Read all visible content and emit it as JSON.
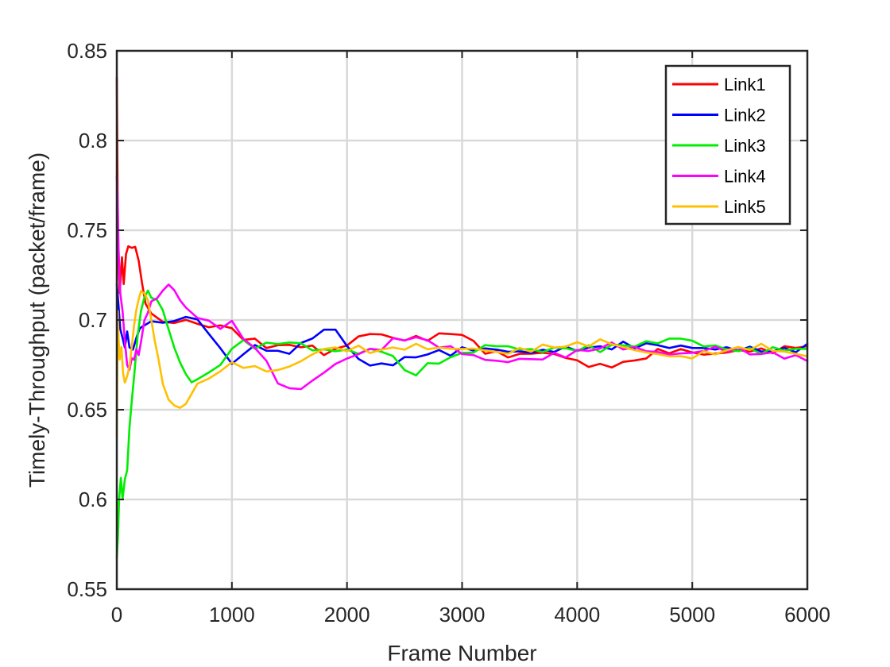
{
  "chart_data": {
    "type": "line",
    "title": "",
    "xlabel": "Frame Number",
    "ylabel": "Timely-Throughput (packet/frame)",
    "xlim": [
      0,
      6000
    ],
    "ylim": [
      0.55,
      0.85
    ],
    "xticks": [
      0,
      1000,
      2000,
      3000,
      4000,
      5000,
      6000
    ],
    "xtick_labels": [
      "0",
      "1000",
      "2000",
      "3000",
      "4000",
      "5000",
      "6000"
    ],
    "yticks": [
      0.55,
      0.6,
      0.65,
      0.7,
      0.75,
      0.8,
      0.85
    ],
    "ytick_labels": [
      "0.55",
      "0.6",
      "0.65",
      "0.7",
      "0.75",
      "0.8",
      "0.85"
    ],
    "grid": true,
    "legend_position": "top-right",
    "series": [
      {
        "name": "Link1",
        "color": "#ff0000",
        "x": [
          0,
          10,
          25,
          45,
          60,
          80,
          100,
          130,
          160,
          190,
          220,
          250,
          300,
          400,
          500,
          600,
          700,
          800,
          900,
          1000,
          1100,
          1200,
          1300,
          1400,
          1500,
          1600,
          1700,
          1800,
          1900,
          2000,
          2100,
          2200,
          2300,
          2400,
          2500,
          2600,
          2700,
          2800,
          2900,
          3000,
          3100,
          3200,
          3300,
          3400,
          3500,
          3600,
          3700,
          3800,
          3900,
          4000,
          4100,
          4200,
          4300,
          4400,
          4500,
          4600,
          4700,
          4800,
          4900,
          5000,
          5100,
          5200,
          5300,
          5400,
          5500,
          5600,
          5700,
          5800,
          5900,
          6000
        ],
        "y": [
          0.835,
          0.74,
          0.715,
          0.735,
          0.72,
          0.735,
          0.74,
          0.741,
          0.74,
          0.735,
          0.72,
          0.71,
          0.702,
          0.7,
          0.698,
          0.7,
          0.698,
          0.696,
          0.697,
          0.695,
          0.69,
          0.688,
          0.686,
          0.685,
          0.686,
          0.686,
          0.684,
          0.682,
          0.683,
          0.686,
          0.691,
          0.692,
          0.692,
          0.69,
          0.689,
          0.69,
          0.69,
          0.691,
          0.693,
          0.692,
          0.687,
          0.683,
          0.681,
          0.68,
          0.681,
          0.681,
          0.682,
          0.681,
          0.679,
          0.677,
          0.675,
          0.674,
          0.675,
          0.676,
          0.677,
          0.68,
          0.682,
          0.683,
          0.683,
          0.682,
          0.681,
          0.681,
          0.682,
          0.683,
          0.683,
          0.683,
          0.683,
          0.684,
          0.685,
          0.686
        ]
      },
      {
        "name": "Link2",
        "color": "#0000ff",
        "x": [
          0,
          15,
          30,
          50,
          70,
          90,
          110,
          140,
          170,
          200,
          250,
          300,
          400,
          500,
          600,
          700,
          800,
          900,
          1000,
          1100,
          1200,
          1300,
          1400,
          1500,
          1600,
          1700,
          1800,
          1900,
          2000,
          2100,
          2200,
          2300,
          2400,
          2500,
          2600,
          2700,
          2800,
          2900,
          3000,
          3100,
          3200,
          3300,
          3400,
          3500,
          3600,
          3700,
          3800,
          3900,
          4000,
          4100,
          4200,
          4300,
          4400,
          4500,
          4600,
          4700,
          4800,
          4900,
          5000,
          5100,
          5200,
          5300,
          5400,
          5500,
          5600,
          5700,
          5800,
          5900,
          6000
        ],
        "y": [
          0.72,
          0.708,
          0.695,
          0.69,
          0.683,
          0.694,
          0.686,
          0.683,
          0.692,
          0.695,
          0.698,
          0.699,
          0.699,
          0.699,
          0.702,
          0.7,
          0.693,
          0.683,
          0.677,
          0.68,
          0.686,
          0.684,
          0.681,
          0.683,
          0.686,
          0.69,
          0.695,
          0.694,
          0.686,
          0.678,
          0.675,
          0.675,
          0.676,
          0.678,
          0.68,
          0.681,
          0.682,
          0.682,
          0.683,
          0.684,
          0.684,
          0.683,
          0.683,
          0.682,
          0.682,
          0.683,
          0.683,
          0.684,
          0.684,
          0.684,
          0.685,
          0.685,
          0.686,
          0.686,
          0.686,
          0.686,
          0.685,
          0.685,
          0.685,
          0.684,
          0.684,
          0.684,
          0.684,
          0.684,
          0.683,
          0.683,
          0.683,
          0.684,
          0.685
        ]
      },
      {
        "name": "Link3",
        "color": "#00ee00",
        "x": [
          0,
          10,
          20,
          35,
          50,
          70,
          90,
          110,
          130,
          150,
          180,
          210,
          240,
          270,
          300,
          350,
          400,
          450,
          500,
          550,
          600,
          650,
          700,
          800,
          900,
          1000,
          1100,
          1200,
          1300,
          1400,
          1500,
          1600,
          1700,
          1800,
          1900,
          2000,
          2100,
          2200,
          2300,
          2400,
          2500,
          2600,
          2700,
          2800,
          2900,
          3000,
          3100,
          3200,
          3300,
          3400,
          3500,
          3600,
          3700,
          3800,
          3900,
          4000,
          4100,
          4200,
          4300,
          4400,
          4500,
          4600,
          4700,
          4800,
          4900,
          5000,
          5100,
          5200,
          5300,
          5400,
          5500,
          5600,
          5700,
          5800,
          5900,
          6000
        ],
        "y": [
          0.567,
          0.58,
          0.6,
          0.612,
          0.6,
          0.612,
          0.618,
          0.64,
          0.655,
          0.67,
          0.69,
          0.705,
          0.712,
          0.715,
          0.713,
          0.712,
          0.705,
          0.695,
          0.685,
          0.675,
          0.669,
          0.667,
          0.668,
          0.67,
          0.675,
          0.685,
          0.687,
          0.686,
          0.686,
          0.687,
          0.688,
          0.686,
          0.684,
          0.683,
          0.683,
          0.683,
          0.682,
          0.683,
          0.683,
          0.68,
          0.671,
          0.671,
          0.674,
          0.677,
          0.679,
          0.681,
          0.683,
          0.685,
          0.686,
          0.685,
          0.684,
          0.683,
          0.683,
          0.684,
          0.684,
          0.684,
          0.684,
          0.684,
          0.685,
          0.686,
          0.686,
          0.687,
          0.688,
          0.689,
          0.69,
          0.688,
          0.686,
          0.685,
          0.684,
          0.683,
          0.683,
          0.683,
          0.683,
          0.684,
          0.684,
          0.683
        ]
      },
      {
        "name": "Link4",
        "color": "#ff00ff",
        "x": [
          0,
          8,
          15,
          30,
          50,
          70,
          90,
          110,
          130,
          150,
          170,
          190,
          210,
          240,
          270,
          300,
          350,
          400,
          450,
          500,
          550,
          600,
          700,
          800,
          900,
          1000,
          1100,
          1200,
          1300,
          1400,
          1500,
          1600,
          1700,
          1800,
          1900,
          2000,
          2100,
          2200,
          2300,
          2400,
          2500,
          2600,
          2700,
          2800,
          2900,
          3000,
          3100,
          3200,
          3300,
          3400,
          3500,
          3600,
          3700,
          3800,
          3900,
          4000,
          4100,
          4200,
          4300,
          4400,
          4500,
          4600,
          4700,
          4800,
          4900,
          5000,
          5100,
          5200,
          5300,
          5400,
          5500,
          5600,
          5700,
          5800,
          5900,
          6000
        ],
        "y": [
          0.78,
          0.765,
          0.74,
          0.715,
          0.705,
          0.69,
          0.675,
          0.672,
          0.68,
          0.678,
          0.682,
          0.68,
          0.688,
          0.698,
          0.705,
          0.71,
          0.714,
          0.717,
          0.718,
          0.716,
          0.712,
          0.707,
          0.702,
          0.698,
          0.697,
          0.698,
          0.69,
          0.685,
          0.676,
          0.666,
          0.661,
          0.662,
          0.666,
          0.671,
          0.675,
          0.679,
          0.681,
          0.683,
          0.685,
          0.688,
          0.69,
          0.69,
          0.688,
          0.686,
          0.684,
          0.682,
          0.68,
          0.678,
          0.677,
          0.677,
          0.678,
          0.678,
          0.679,
          0.68,
          0.681,
          0.682,
          0.683,
          0.685,
          0.686,
          0.685,
          0.684,
          0.683,
          0.682,
          0.681,
          0.681,
          0.682,
          0.683,
          0.684,
          0.684,
          0.683,
          0.682,
          0.681,
          0.681,
          0.68,
          0.679,
          0.678
        ]
      },
      {
        "name": "Link5",
        "color": "#ffc000",
        "x": [
          0,
          8,
          15,
          25,
          40,
          55,
          70,
          90,
          110,
          130,
          150,
          170,
          190,
          210,
          240,
          270,
          300,
          330,
          360,
          400,
          450,
          500,
          550,
          600,
          700,
          800,
          900,
          1000,
          1100,
          1200,
          1300,
          1400,
          1500,
          1600,
          1700,
          1800,
          1900,
          2000,
          2100,
          2200,
          2300,
          2400,
          2500,
          2600,
          2700,
          2800,
          2900,
          3000,
          3100,
          3200,
          3300,
          3400,
          3500,
          3600,
          3700,
          3800,
          3900,
          4000,
          4100,
          4200,
          4300,
          4400,
          4500,
          4600,
          4700,
          4800,
          4900,
          5000,
          5100,
          5200,
          5300,
          5400,
          5500,
          5600,
          5700,
          5800,
          5900,
          6000
        ],
        "y": [
          0.635,
          0.705,
          0.69,
          0.678,
          0.685,
          0.67,
          0.665,
          0.668,
          0.675,
          0.685,
          0.695,
          0.705,
          0.712,
          0.715,
          0.715,
          0.712,
          0.7,
          0.69,
          0.678,
          0.665,
          0.655,
          0.651,
          0.652,
          0.655,
          0.663,
          0.668,
          0.672,
          0.675,
          0.675,
          0.673,
          0.672,
          0.672,
          0.674,
          0.677,
          0.681,
          0.684,
          0.684,
          0.684,
          0.684,
          0.683,
          0.683,
          0.684,
          0.685,
          0.685,
          0.685,
          0.684,
          0.684,
          0.684,
          0.684,
          0.683,
          0.682,
          0.682,
          0.683,
          0.684,
          0.685,
          0.685,
          0.686,
          0.686,
          0.687,
          0.688,
          0.687,
          0.685,
          0.683,
          0.682,
          0.681,
          0.68,
          0.679,
          0.68,
          0.681,
          0.682,
          0.683,
          0.684,
          0.685,
          0.685,
          0.684,
          0.682,
          0.681,
          0.68
        ]
      }
    ]
  }
}
